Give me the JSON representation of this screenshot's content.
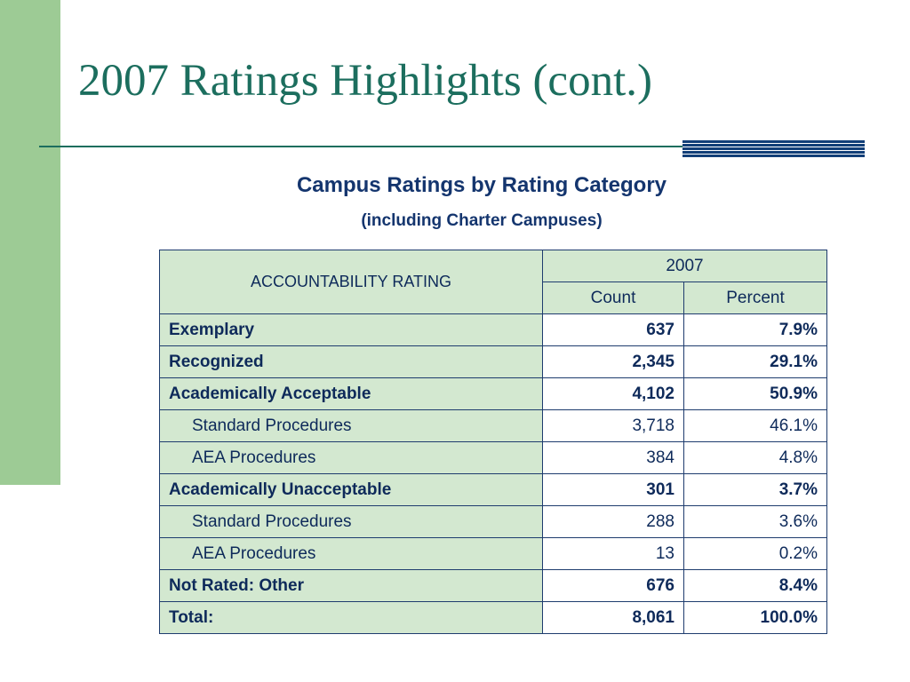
{
  "slide": {
    "title": "2007 Ratings Highlights (cont.)",
    "heading": "Campus Ratings by Rating Category",
    "subheading": "(including Charter Campuses)"
  },
  "table": {
    "header_rating": "ACCOUNTABILITY RATING",
    "header_year": "2007",
    "header_count": "Count",
    "header_percent": "Percent",
    "rows": [
      {
        "label": "Exemplary",
        "count": "637",
        "percent": "7.9%",
        "bold": true,
        "indent": false
      },
      {
        "label": "Recognized",
        "count": "2,345",
        "percent": "29.1%",
        "bold": true,
        "indent": false
      },
      {
        "label": "Academically Acceptable",
        "count": "4,102",
        "percent": "50.9%",
        "bold": true,
        "indent": false
      },
      {
        "label": "Standard Procedures",
        "count": "3,718",
        "percent": "46.1%",
        "bold": false,
        "indent": true
      },
      {
        "label": "AEA Procedures",
        "count": "384",
        "percent": "4.8%",
        "bold": false,
        "indent": true
      },
      {
        "label": "Academically Unacceptable",
        "count": "301",
        "percent": "3.7%",
        "bold": true,
        "indent": false
      },
      {
        "label": "Standard Procedures",
        "count": "288",
        "percent": "3.6%",
        "bold": false,
        "indent": true
      },
      {
        "label": "AEA Procedures",
        "count": "13",
        "percent": "0.2%",
        "bold": false,
        "indent": true
      },
      {
        "label": "Not Rated: Other",
        "count": "676",
        "percent": "8.4%",
        "bold": true,
        "indent": false
      },
      {
        "label": "Total:",
        "count": "8,061",
        "percent": "100.0%",
        "bold": true,
        "indent": false
      }
    ]
  },
  "colors": {
    "side_bar": "#9dcb95",
    "title": "#1c6e5e",
    "heading": "#14356e",
    "label_cell_fill": "#d3e8d0",
    "table_border": "#1e3c6e"
  }
}
